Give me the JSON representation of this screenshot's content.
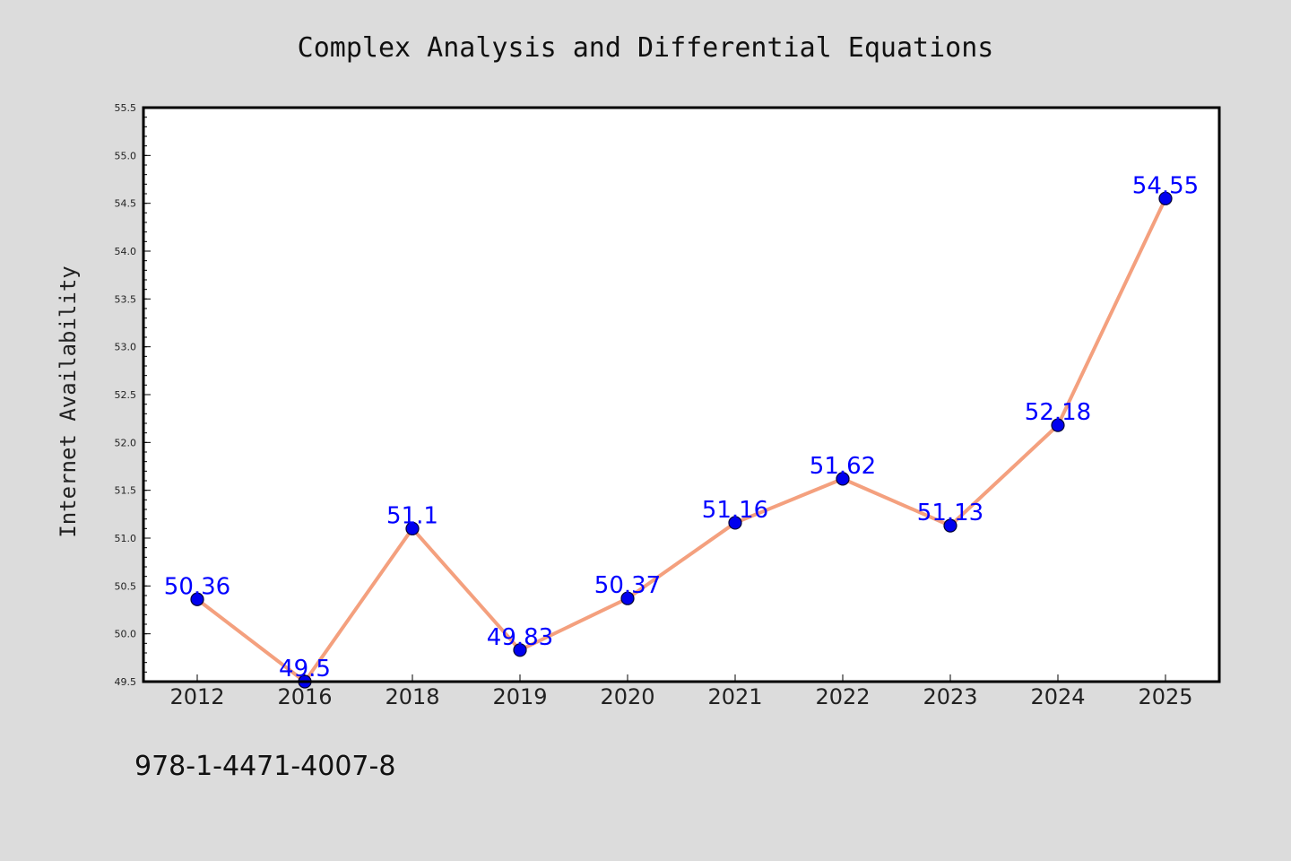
{
  "chart_data": {
    "type": "line",
    "title": "Complex Analysis and Differential Equations",
    "xlabel": "",
    "ylabel": "Internet Availability",
    "categories": [
      "2012",
      "2016",
      "2018",
      "2019",
      "2020",
      "2021",
      "2022",
      "2023",
      "2024",
      "2025"
    ],
    "series": [
      {
        "values": [
          50.36,
          49.5,
          51.1,
          49.83,
          50.37,
          51.16,
          51.62,
          51.13,
          52.18,
          54.55
        ]
      }
    ],
    "data_labels": [
      "50.36",
      "49.5",
      "51.1",
      "49.83",
      "50.37",
      "51.16",
      "51.62",
      "51.13",
      "52.18",
      "54.55"
    ],
    "ylim": [
      49.5,
      55.5
    ],
    "yticks": [
      "49.5",
      "50.0",
      "50.5",
      "51.0",
      "51.5",
      "52.0",
      "52.5",
      "53.0",
      "53.5",
      "54.0",
      "54.5",
      "55.0",
      "55.5"
    ],
    "grid": false,
    "legend": "none",
    "colors": {
      "line": "#f4a07e",
      "marker": "#0000ee",
      "label": "#0000ff",
      "background": "#dcdcdc",
      "plot_background": "#ffffff"
    }
  },
  "footer_text": "978-1-4471-4007-8"
}
